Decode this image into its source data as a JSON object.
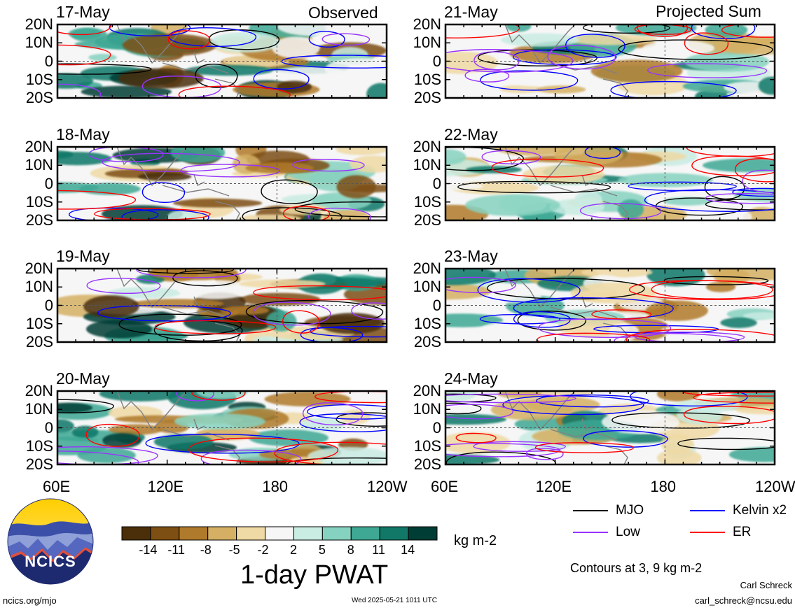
{
  "chart_data": {
    "type": "heatmap",
    "title": "1-day PWAT",
    "units": "kg m-2",
    "column_headers": [
      "Observed",
      "Projected Sum"
    ],
    "panels": [
      {
        "date": "17-May",
        "column": "Observed"
      },
      {
        "date": "18-May",
        "column": "Observed"
      },
      {
        "date": "19-May",
        "column": "Observed"
      },
      {
        "date": "20-May",
        "column": "Observed"
      },
      {
        "date": "21-May",
        "column": "Projected Sum"
      },
      {
        "date": "22-May",
        "column": "Projected Sum"
      },
      {
        "date": "23-May",
        "column": "Projected Sum"
      },
      {
        "date": "24-May",
        "column": "Projected Sum"
      }
    ],
    "y_ticks": [
      "20N",
      "10N",
      "0",
      "10S",
      "20S"
    ],
    "x_ticks": [
      "60E",
      "120E",
      "180",
      "120W"
    ],
    "xlim": [
      60,
      240
    ],
    "ylim": [
      -20,
      20
    ],
    "colorbar": {
      "labels": [
        "-14",
        "-11",
        "-8",
        "-5",
        "-2",
        "2",
        "5",
        "8",
        "11",
        "14"
      ],
      "colors": [
        "#4a2f0a",
        "#7e4f12",
        "#b07a2c",
        "#d5b064",
        "#efd9a4",
        "#f6f6f6",
        "#c9ece3",
        "#86d2c0",
        "#3ea894",
        "#117868",
        "#003d34"
      ]
    },
    "contours": {
      "note": "Contours at 3, 9 kg m-2",
      "series": [
        {
          "name": "MJO",
          "color": "#000000"
        },
        {
          "name": "Kelvin x2",
          "color": "#0000ff"
        },
        {
          "name": "Low",
          "color": "#9933ff"
        },
        {
          "name": "ER",
          "color": "#ff0000"
        }
      ]
    }
  },
  "logo": {
    "text": "NCICS"
  },
  "footer": {
    "url": "ncics.org/mjo",
    "timestamp": "Wed 2025-05-21 1011 UTC",
    "author": "Carl Schreck",
    "email": "carl_schreck@ncsu.edu"
  }
}
